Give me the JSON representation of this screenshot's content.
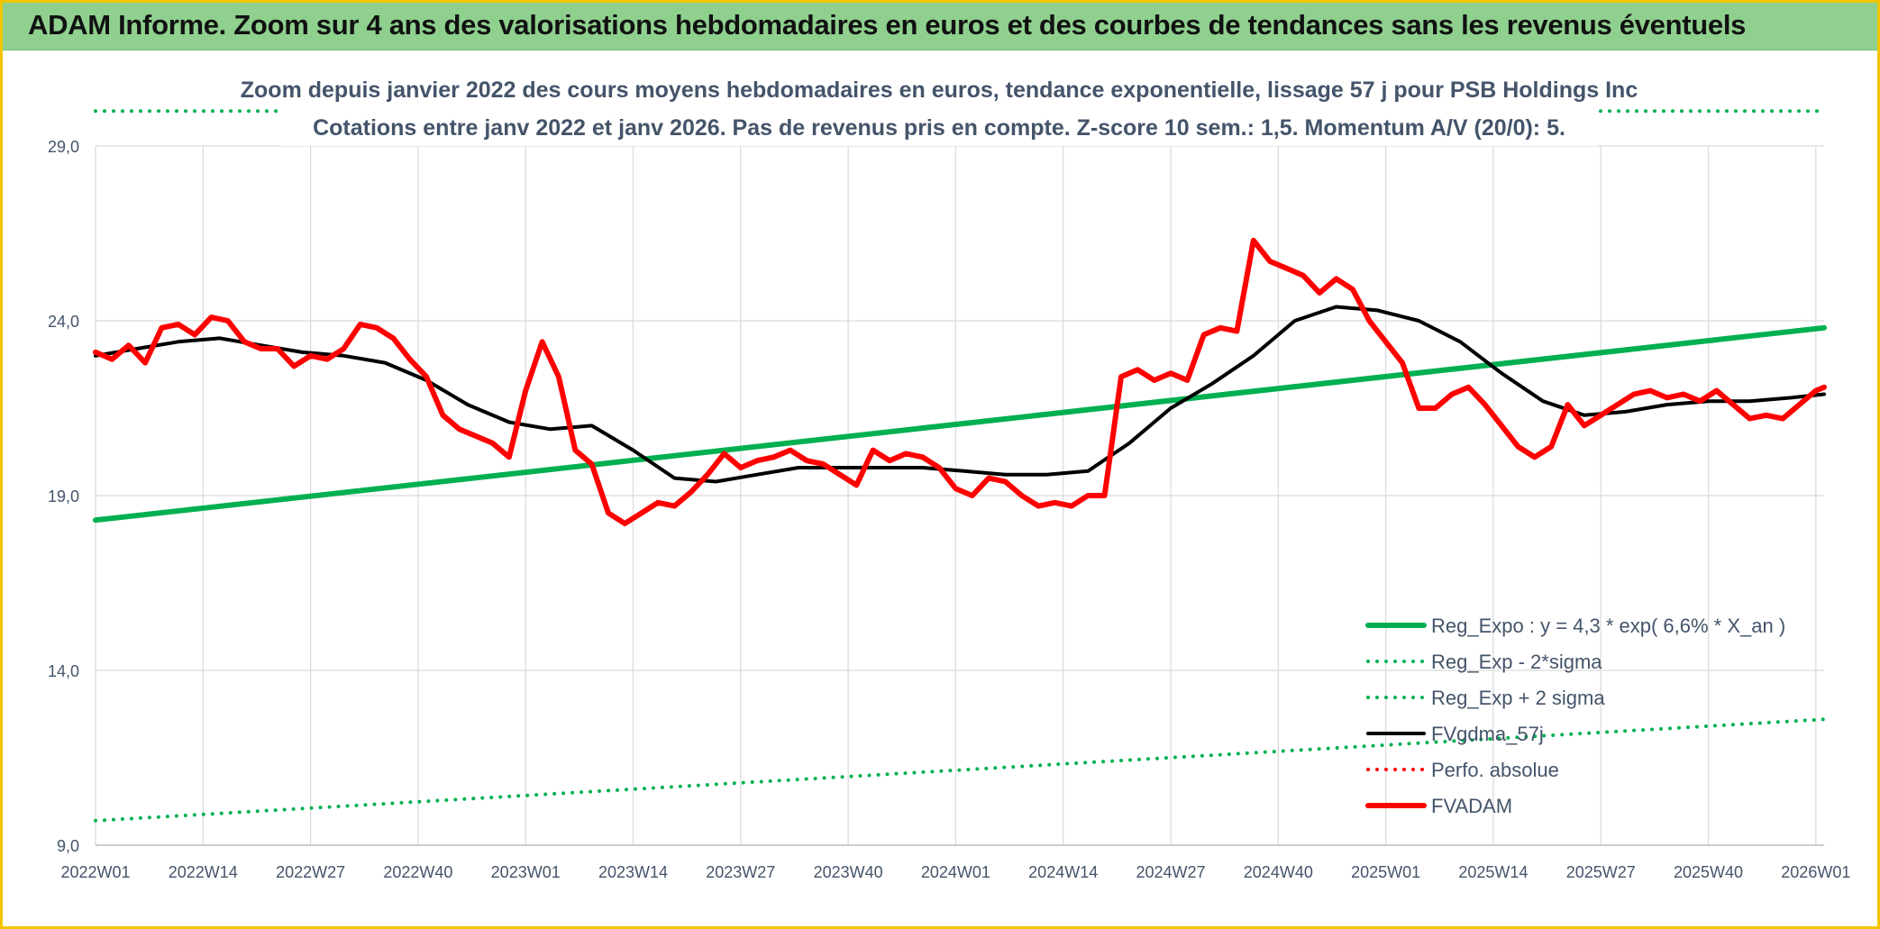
{
  "banner": {
    "title": "ADAM Informe. Zoom sur 4 ans des valorisations hebdomadaires en euros et des courbes de tendances sans les revenus éventuels"
  },
  "colors": {
    "banner_bg": "#8fd08f",
    "frame": "#f2c500",
    "regression": "#00b050",
    "fvgdma": "#000000",
    "fvadam": "#ff0000",
    "grid": "#d9d9d9",
    "text": "#44546a"
  },
  "chart_data": {
    "type": "line",
    "title_lines": [
      "Zoom depuis janvier 2022 des cours moyens hebdomadaires en euros, tendance exponentielle, lissage 57 j pour PSB Holdings Inc",
      "Cotations entre janv 2022 et janv 2026. Pas de revenus pris en compte. Z-score 10 sem.: 1,5. Momentum A/V (20/0): 5."
    ],
    "x_tick_labels": [
      "2022W01",
      "2022W14",
      "2022W27",
      "2022W40",
      "2023W01",
      "2023W14",
      "2023W27",
      "2023W40",
      "2024W01",
      "2024W14",
      "2024W27",
      "2024W40",
      "2025W01",
      "2025W14",
      "2025W27",
      "2025W40",
      "2026W01"
    ],
    "y_tick_labels": [
      "9,0",
      "14,0",
      "19,0",
      "24,0",
      "29,0"
    ],
    "y_ticks": [
      9,
      14,
      19,
      24,
      29
    ],
    "ylim": [
      9,
      29
    ],
    "xlim": [
      0,
      209
    ],
    "series": [
      {
        "name": "Reg_Expo : y = 4,3 * exp( 6,6% *  X_an )",
        "style": "solid-thick",
        "color": "#00b050",
        "x": [
          0,
          209
        ],
        "y": [
          18.3,
          23.8
        ]
      },
      {
        "name": "Reg_Exp - 2*sigma",
        "style": "dotted",
        "color": "#00b050",
        "x": [
          0,
          209
        ],
        "y": [
          9.7,
          12.6
        ]
      },
      {
        "name": "Reg_Exp + 2 sigma",
        "style": "dotted",
        "color": "#00b050",
        "x": [
          0,
          209
        ],
        "y": [
          30.0,
          30.0
        ]
      },
      {
        "name": "FVgdma_57j",
        "style": "solid",
        "color": "#000000",
        "x": [
          0,
          5,
          10,
          15,
          20,
          25,
          30,
          35,
          40,
          45,
          50,
          55,
          60,
          65,
          70,
          75,
          80,
          85,
          90,
          95,
          100,
          105,
          110,
          115,
          120,
          125,
          130,
          135,
          140,
          145,
          150,
          155,
          160,
          165,
          170,
          175,
          180,
          185,
          190,
          195,
          200,
          205,
          209
        ],
        "y": [
          23.0,
          23.2,
          23.4,
          23.5,
          23.3,
          23.1,
          23.0,
          22.8,
          22.3,
          21.6,
          21.1,
          20.9,
          21.0,
          20.3,
          19.5,
          19.4,
          19.6,
          19.8,
          19.8,
          19.8,
          19.8,
          19.7,
          19.6,
          19.6,
          19.7,
          20.5,
          21.5,
          22.2,
          23.0,
          24.0,
          24.4,
          24.3,
          24.0,
          23.4,
          22.5,
          21.7,
          21.3,
          21.4,
          21.6,
          21.7,
          21.7,
          21.8,
          21.9
        ]
      },
      {
        "name": "Perfo. absolue",
        "style": "dotted",
        "color": "#ff0000",
        "x": [],
        "y": []
      },
      {
        "name": "FVADAM",
        "style": "solid-thick",
        "color": "#ff0000",
        "x": [
          0,
          2,
          4,
          6,
          8,
          10,
          12,
          14,
          16,
          18,
          20,
          22,
          24,
          26,
          28,
          30,
          32,
          34,
          36,
          38,
          40,
          42,
          44,
          46,
          48,
          50,
          52,
          54,
          56,
          58,
          60,
          62,
          64,
          66,
          68,
          70,
          72,
          74,
          76,
          78,
          80,
          82,
          84,
          86,
          88,
          90,
          92,
          94,
          96,
          98,
          100,
          102,
          104,
          106,
          108,
          110,
          112,
          114,
          116,
          118,
          120,
          122,
          124,
          126,
          128,
          130,
          132,
          134,
          136,
          138,
          140,
          142,
          144,
          146,
          148,
          150,
          152,
          154,
          156,
          158,
          160,
          162,
          164,
          166,
          168,
          170,
          172,
          174,
          176,
          178,
          180,
          182,
          184,
          186,
          188,
          190,
          192,
          194,
          196,
          198,
          200,
          202,
          204,
          206,
          208,
          209
        ],
        "y": [
          23.1,
          22.9,
          23.3,
          22.8,
          23.8,
          23.9,
          23.6,
          24.1,
          24.0,
          23.4,
          23.2,
          23.2,
          22.7,
          23.0,
          22.9,
          23.2,
          23.9,
          23.8,
          23.5,
          22.9,
          22.4,
          21.3,
          20.9,
          20.7,
          20.5,
          20.1,
          22.0,
          23.4,
          22.4,
          20.3,
          19.9,
          18.5,
          18.2,
          18.5,
          18.8,
          18.7,
          19.1,
          19.6,
          20.2,
          19.8,
          20.0,
          20.1,
          20.3,
          20.0,
          19.9,
          19.6,
          19.3,
          20.3,
          20.0,
          20.2,
          20.1,
          19.8,
          19.2,
          19.0,
          19.5,
          19.4,
          19.0,
          18.7,
          18.8,
          18.7,
          19.0,
          19.0,
          22.4,
          22.6,
          22.3,
          22.5,
          22.3,
          23.6,
          23.8,
          23.7,
          26.3,
          25.7,
          25.5,
          25.3,
          24.8,
          25.2,
          24.9,
          24.0,
          23.4,
          22.8,
          21.5,
          21.5,
          21.9,
          22.1,
          21.6,
          21.0,
          20.4,
          20.1,
          20.4,
          21.6,
          21.0,
          21.3,
          21.6,
          21.9,
          22.0,
          21.8,
          21.9,
          21.7,
          22.0,
          21.6,
          21.2,
          21.3,
          21.2,
          21.6,
          22.0,
          22.1
        ]
      }
    ],
    "legend_placement": "bottom-right"
  }
}
